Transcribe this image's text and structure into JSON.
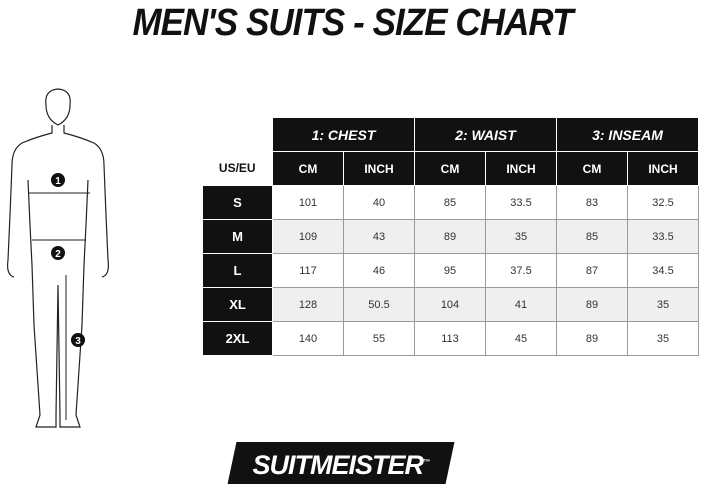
{
  "title": "MEN'S SUITS - SIZE CHART",
  "figure": {
    "markers": [
      "1",
      "2",
      "3"
    ]
  },
  "table": {
    "size_header": "US/EU",
    "groups": [
      "1: CHEST",
      "2: WAIST",
      "3: INSEAM"
    ],
    "units": [
      "CM",
      "INCH",
      "CM",
      "INCH",
      "CM",
      "INCH"
    ],
    "rows": [
      {
        "size": "S",
        "values": [
          "101",
          "40",
          "85",
          "33.5",
          "83",
          "32.5"
        ]
      },
      {
        "size": "M",
        "values": [
          "109",
          "43",
          "89",
          "35",
          "85",
          "33.5"
        ]
      },
      {
        "size": "L",
        "values": [
          "117",
          "46",
          "95",
          "37.5",
          "87",
          "34.5"
        ]
      },
      {
        "size": "XL",
        "values": [
          "128",
          "50.5",
          "104",
          "41",
          "89",
          "35"
        ]
      },
      {
        "size": "2XL",
        "values": [
          "140",
          "55",
          "113",
          "45",
          "89",
          "35"
        ]
      }
    ]
  },
  "logo": {
    "text": "SUITMEISTER",
    "mark": "™"
  }
}
